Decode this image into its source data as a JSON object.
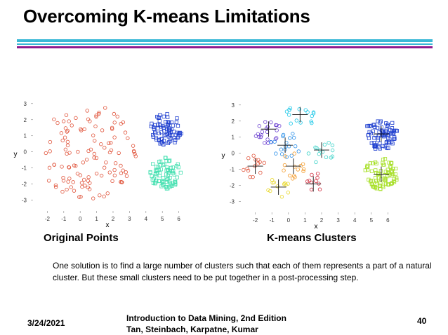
{
  "slide": {
    "title": "Overcoming K-means Limitations",
    "caption_left": "Original Points",
    "caption_right": "K-means Clusters",
    "body": "One solution is to find a large number of clusters such that each of them represents a part of a natural cluster. But these small clusters need to be put together in a post-processing step.",
    "footer_date": "3/24/2021",
    "footer_line1": "Introduction to Data Mining, 2nd Edition",
    "footer_line2": "Tan, Steinbach, Karpatne, Kumar",
    "page_number": "40"
  },
  "colors": {
    "rule_cyan": "#3ab8d6",
    "rule_purple": "#8e1a8e",
    "red_points": "#e0533a",
    "blue_points": "#1f3fcf",
    "green_points": "#44e0b0"
  },
  "chart_data": [
    {
      "type": "scatter",
      "xlabel": "x",
      "ylabel": "y",
      "xlim": [
        -3,
        7
      ],
      "ylim": [
        -3.8,
        3.6
      ],
      "xticks": [
        -2,
        -1,
        0,
        1,
        2,
        3,
        4,
        5,
        6
      ],
      "yticks": [
        -3,
        -2,
        -1,
        0,
        1,
        2,
        3
      ],
      "marker": "circle/square",
      "series": [
        {
          "color": "#e0533a",
          "marker": "circle",
          "shape": "disk",
          "center": [
            0.4,
            0.0
          ],
          "radius": 3.0,
          "count": 120
        },
        {
          "color": "#1f3fcf",
          "marker": "square",
          "shape": "disk",
          "center": [
            5.2,
            1.4
          ],
          "radius": 1.0,
          "count": 80
        },
        {
          "color": "#44e0b0",
          "marker": "square",
          "shape": "disk",
          "center": [
            5.2,
            -1.3
          ],
          "radius": 1.0,
          "count": 80
        }
      ]
    },
    {
      "type": "scatter",
      "xlabel": "x",
      "ylabel": "y",
      "xlim": [
        -3,
        7
      ],
      "ylim": [
        -3.8,
        3.6
      ],
      "xticks": [
        -2,
        -1,
        0,
        1,
        2,
        3,
        4,
        5,
        6
      ],
      "yticks": [
        -3,
        -2,
        -1,
        0,
        1,
        2,
        3
      ],
      "centroids": [
        {
          "x": -1.2,
          "y": 1.5
        },
        {
          "x": 0.7,
          "y": 2.4
        },
        {
          "x": -0.2,
          "y": 0.5
        },
        {
          "x": 2.0,
          "y": 0.2
        },
        {
          "x": -2.0,
          "y": -0.8
        },
        {
          "x": 0.3,
          "y": -0.8
        },
        {
          "x": -0.6,
          "y": -2.1
        },
        {
          "x": 1.5,
          "y": -1.9
        },
        {
          "x": 5.6,
          "y": 1.2
        },
        {
          "x": 5.6,
          "y": -1.3
        }
      ],
      "series": [
        {
          "color": "#6a3fd0",
          "marker": "circle",
          "center": [
            -1.2,
            1.5
          ],
          "radius": 0.9,
          "count": 22
        },
        {
          "color": "#18c7e8",
          "marker": "circle",
          "center": [
            0.7,
            2.4
          ],
          "radius": 0.9,
          "count": 16
        },
        {
          "color": "#2a8fe8",
          "marker": "circle",
          "center": [
            -0.2,
            0.5
          ],
          "radius": 0.9,
          "count": 18
        },
        {
          "color": "#3ad2c8",
          "marker": "circle",
          "center": [
            2.0,
            0.2
          ],
          "radius": 0.9,
          "count": 14
        },
        {
          "color": "#e0533a",
          "marker": "circle",
          "center": [
            -2.0,
            -0.8
          ],
          "radius": 0.8,
          "count": 14
        },
        {
          "color": "#f39a2a",
          "marker": "circle",
          "center": [
            0.3,
            -0.8
          ],
          "radius": 0.8,
          "count": 14
        },
        {
          "color": "#e8d82a",
          "marker": "circle",
          "center": [
            -0.6,
            -2.1
          ],
          "radius": 0.7,
          "count": 12
        },
        {
          "color": "#d0283a",
          "marker": "circle",
          "center": [
            1.5,
            -1.9
          ],
          "radius": 0.7,
          "count": 10
        },
        {
          "color": "#1f3fcf",
          "marker": "square",
          "center": [
            5.6,
            1.2
          ],
          "radius": 1.0,
          "count": 80
        },
        {
          "color": "#a8e02a",
          "marker": "square",
          "center": [
            5.6,
            -1.3
          ],
          "radius": 1.0,
          "count": 80
        }
      ]
    }
  ]
}
